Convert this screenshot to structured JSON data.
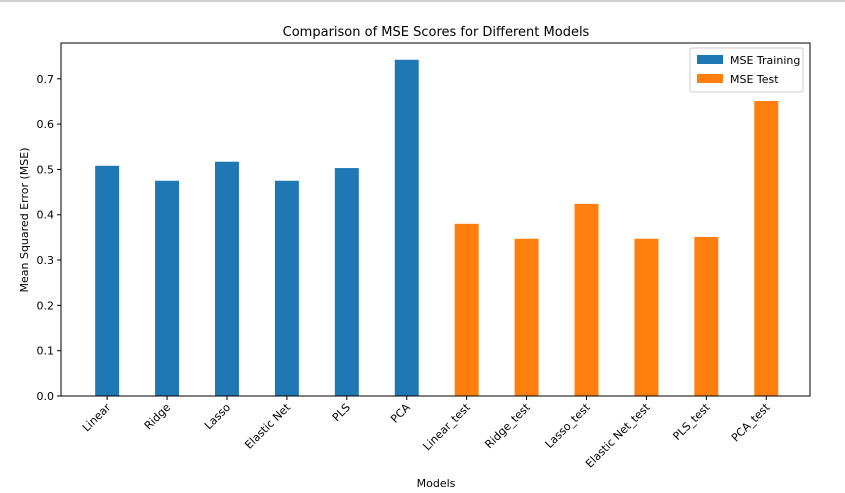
{
  "chart_data": {
    "type": "bar",
    "title": "Comparison of MSE Scores for Different Models",
    "xlabel": "Models",
    "ylabel": "Mean Squared Error (MSE)",
    "categories": [
      "Linear",
      "Ridge",
      "Lasso",
      "Elastic Net",
      "PLS",
      "PCA",
      "Linear_test",
      "Ridge_test",
      "Lasso_test",
      "Elastic Net_test",
      "PLS_test",
      "PCA_test"
    ],
    "series": [
      {
        "name": "MSE Training",
        "color": "#1f77b4",
        "values": [
          0.508,
          0.475,
          0.517,
          0.475,
          0.503,
          0.742,
          null,
          null,
          null,
          null,
          null,
          null
        ]
      },
      {
        "name": "MSE Test",
        "color": "#ff7f0e",
        "values": [
          null,
          null,
          null,
          null,
          null,
          null,
          0.38,
          0.347,
          0.424,
          0.347,
          0.351,
          0.651
        ]
      }
    ],
    "ylim": [
      0,
      0.779
    ],
    "yticks": [
      {
        "value": 0,
        "label": "0.0"
      },
      0.1,
      0.2,
      0.3,
      0.4,
      0.5,
      0.6,
      0.7
    ],
    "legend": "upper right"
  }
}
